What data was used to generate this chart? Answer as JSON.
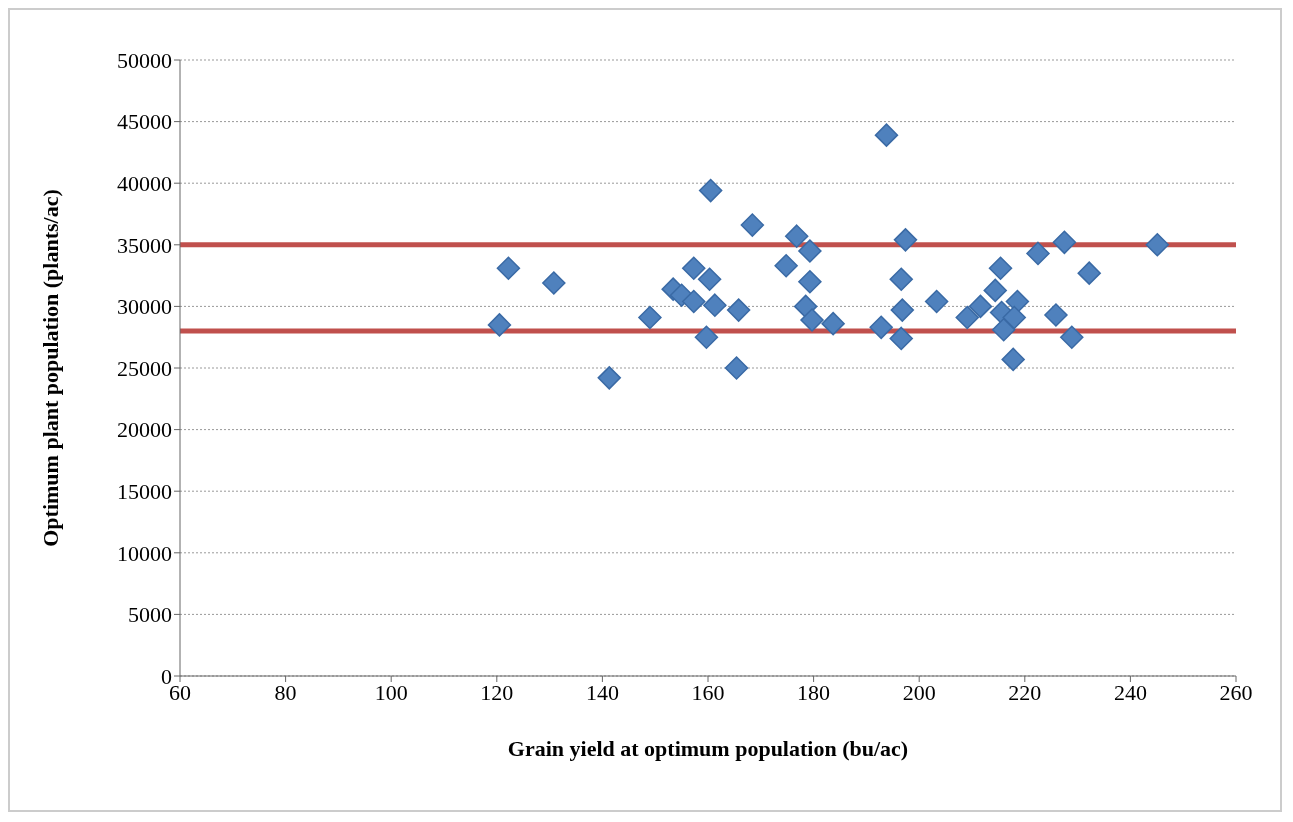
{
  "chart_data": {
    "type": "scatter",
    "xlabel": "Grain yield at optimum population (bu/ac)",
    "ylabel": "Optimum plant population (plants/ac)",
    "x": [
      120.5,
      122.2,
      130.8,
      141.3,
      149.0,
      153.4,
      155.0,
      157.3,
      157.3,
      160.3,
      159.7,
      160.5,
      161.3,
      165.8,
      165.4,
      168.4,
      174.8,
      176.8,
      179.3,
      179.3,
      178.5,
      179.7,
      183.7,
      193.8,
      192.8,
      197.4,
      196.6,
      196.8,
      196.6,
      203.3,
      209.1,
      211.6,
      214.4,
      215.4,
      215.6,
      218.6,
      216.0,
      217.8,
      218.0,
      222.5,
      225.9,
      227.5,
      228.9,
      232.2,
      245.1
    ],
    "values": [
      28500,
      33100,
      31900,
      24200,
      29100,
      31400,
      30900,
      30400,
      33100,
      32200,
      27500,
      39400,
      30100,
      29700,
      25000,
      36600,
      33300,
      35700,
      34500,
      32000,
      30000,
      28900,
      28600,
      43900,
      28300,
      35400,
      32200,
      29700,
      27400,
      30400,
      29100,
      30000,
      31300,
      33100,
      29500,
      30400,
      28100,
      25700,
      29100,
      34300,
      29300,
      35200,
      27500,
      32700,
      35000
    ],
    "color": "#4f81bd",
    "marker": "diamond",
    "xlim": [
      60,
      260
    ],
    "xticks": [
      60,
      80,
      100,
      120,
      140,
      160,
      180,
      200,
      220,
      240,
      260
    ],
    "ylim": [
      0,
      50000
    ],
    "yticks": [
      0,
      5000,
      10000,
      15000,
      20000,
      25000,
      30000,
      35000,
      40000,
      45000,
      50000
    ],
    "grid": "y",
    "legend": false,
    "ref_lines": [
      {
        "axis": "y",
        "value": 35000,
        "color": "#c0504d"
      },
      {
        "axis": "y",
        "value": 28000,
        "color": "#c0504d"
      }
    ]
  }
}
